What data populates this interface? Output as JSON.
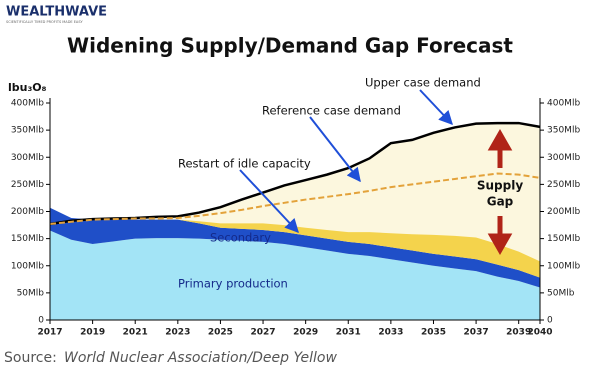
{
  "header": {
    "logo": "WEALTHWAVE",
    "tagline": "SCIENTIFICALLY TIMED PROFITS MADE EASY"
  },
  "chart_data": {
    "type": "area",
    "title": "Widening Supply/Demand Gap Forecast",
    "y_label": "lbu₃O₈",
    "stacked": true,
    "x": [
      2017,
      2018,
      2019,
      2020,
      2021,
      2022,
      2023,
      2024,
      2025,
      2026,
      2027,
      2028,
      2029,
      2030,
      2031,
      2032,
      2033,
      2034,
      2035,
      2036,
      2037,
      2038,
      2039,
      2040
    ],
    "xlim": [
      2017,
      2040
    ],
    "xticks": [
      2017,
      2019,
      2021,
      2023,
      2025,
      2027,
      2029,
      2031,
      2033,
      2035,
      2037,
      2039,
      2040
    ],
    "ylim": [
      0,
      400
    ],
    "yticks": [
      0,
      {
        "value": 50,
        "label": "50Mlb"
      },
      {
        "value": 100,
        "label": "100Mlb"
      },
      {
        "value": 150,
        "label": "150Mlb"
      },
      {
        "value": 200,
        "label": "200Mlb"
      },
      {
        "value": 250,
        "label": "250Mlb"
      },
      {
        "value": 300,
        "label": "300Mlb"
      },
      {
        "value": 350,
        "label": "350Mlb"
      },
      {
        "value": 400,
        "label": "400Mlb"
      }
    ],
    "y2lim": [
      0,
      400
    ],
    "y2ticks": [
      0,
      {
        "value": 50,
        "label": "50Mlb"
      },
      {
        "value": 100,
        "label": "100Mlb"
      },
      {
        "value": 150,
        "label": "150Mlb"
      },
      {
        "value": 200,
        "label": "200Mlb"
      },
      {
        "value": 250,
        "label": "250Mlb"
      },
      {
        "value": 300,
        "label": "300Mlb"
      },
      {
        "value": 350,
        "label": "350Mlb"
      },
      {
        "value": 400,
        "label": "400Mlb"
      }
    ],
    "grid": false,
    "series": [
      {
        "name": "Primary production",
        "style": "area",
        "color": "#a3e4f6",
        "values": [
          165,
          148,
          140,
          145,
          150,
          151,
          151,
          150,
          148,
          146,
          144,
          140,
          134,
          128,
          122,
          118,
          112,
          106,
          100,
          95,
          90,
          80,
          72,
          60
        ]
      },
      {
        "name": "Secondary",
        "style": "area",
        "color": "#1f4fc8",
        "values": [
          42,
          40,
          45,
          40,
          35,
          34,
          34,
          28,
          22,
          22,
          22,
          22,
          22,
          22,
          22,
          22,
          22,
          22,
          22,
          22,
          22,
          22,
          20,
          18
        ]
      },
      {
        "name": "Restart of idle capacity",
        "style": "area",
        "color": "#f4d34c",
        "values": [
          0,
          0,
          0,
          0,
          0,
          0,
          0,
          4,
          8,
          10,
          12,
          13,
          14,
          16,
          18,
          22,
          26,
          30,
          35,
          38,
          40,
          38,
          34,
          30
        ]
      },
      {
        "name": "Upper case demand",
        "style": "line",
        "color": "#000000",
        "fill": "#fcf7de",
        "values": [
          177,
          183,
          186,
          187,
          188,
          190,
          191,
          198,
          208,
          222,
          235,
          248,
          258,
          268,
          280,
          298,
          326,
          332,
          345,
          355,
          362,
          363,
          363,
          356
        ]
      },
      {
        "name": "Reference case demand",
        "style": "line",
        "dash": true,
        "color": "#e3a23a",
        "values": [
          177,
          181,
          185,
          186,
          187,
          187,
          188,
          192,
          197,
          203,
          210,
          216,
          222,
          227,
          232,
          238,
          245,
          250,
          255,
          260,
          265,
          270,
          268,
          262
        ]
      }
    ],
    "annotation": {
      "line1": "Supply",
      "line2": "Gap"
    }
  },
  "source": {
    "label": "Source:",
    "text": "World Nuclear Association/Deep Yellow"
  }
}
